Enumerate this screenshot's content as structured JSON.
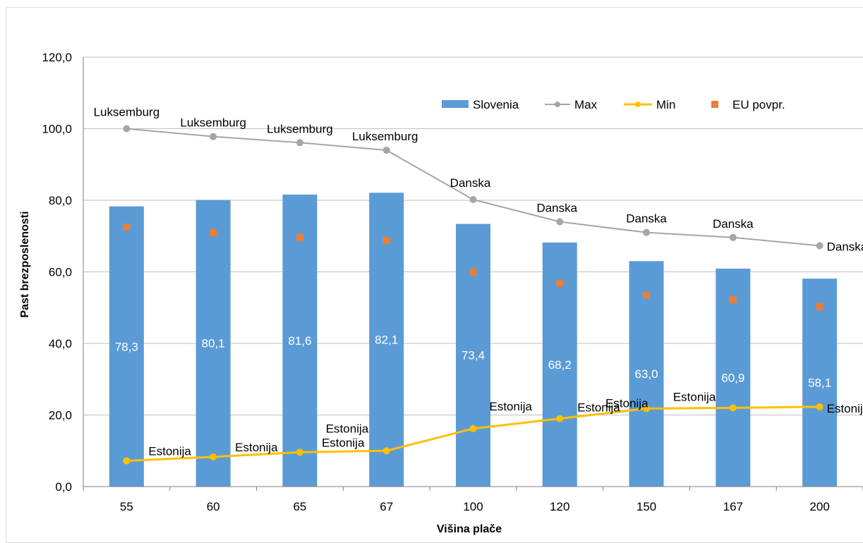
{
  "chart_data": {
    "type": "bar",
    "title": "",
    "xlabel": "Višina plače",
    "ylabel": "Past brezposlenosti",
    "ylim": [
      0,
      120
    ],
    "yticks": [
      "0,0",
      "20,0",
      "40,0",
      "60,0",
      "80,0",
      "100,0",
      "120,0"
    ],
    "categories": [
      "55",
      "60",
      "65",
      "67",
      "100",
      "120",
      "150",
      "167",
      "200"
    ],
    "series": [
      {
        "name": "Slovenia",
        "kind": "bar",
        "color": "#5b9bd5",
        "values": [
          78.3,
          80.1,
          81.6,
          82.1,
          73.4,
          68.2,
          63.0,
          60.9,
          58.1
        ],
        "labels": [
          "78,3",
          "80,1",
          "81,6",
          "82,1",
          "73,4",
          "68,2",
          "63,0",
          "60,9",
          "58,1"
        ]
      },
      {
        "name": "Max",
        "kind": "line",
        "color": "#a5a5a5",
        "values": [
          100.0,
          97.8,
          96.1,
          94.0,
          80.2,
          74.0,
          71.0,
          69.6,
          67.3
        ],
        "countries": [
          "Luksemburg",
          "Luksemburg",
          "Luksemburg",
          "Luksemburg",
          "Danska",
          "Danska",
          "Danska",
          "Danska",
          "Danska"
        ]
      },
      {
        "name": "Min",
        "kind": "line",
        "color": "#ffc000",
        "values": [
          7.2,
          8.3,
          9.6,
          10.0,
          16.2,
          19.0,
          21.8,
          22.0,
          22.3
        ],
        "countries": [
          "Estonija",
          "Estonija",
          "Estonija",
          "Estonija",
          "Estonija",
          "Estonija",
          "Estonija",
          "Estonija",
          "Estonija"
        ]
      },
      {
        "name": "EU povpr.",
        "kind": "marker",
        "color": "#ed7d31",
        "values": [
          72.5,
          70.9,
          69.6,
          68.8,
          59.9,
          56.8,
          53.5,
          52.2,
          50.3
        ]
      }
    ],
    "grid": true,
    "legend": "top-right"
  }
}
